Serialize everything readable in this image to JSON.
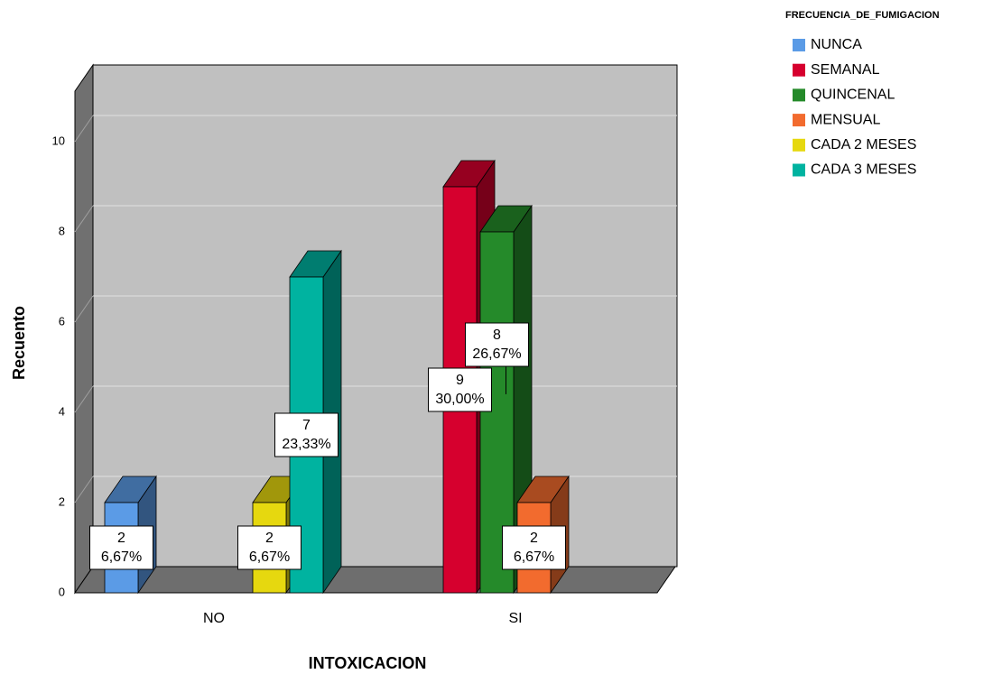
{
  "chart_data": {
    "type": "bar3d",
    "x_label": "INTOXICACION",
    "y_label": "Recuento",
    "legend_title": "FRECUENCIA_DE_FUMIGACION",
    "categories": [
      "NO",
      "SI"
    ],
    "ylim": [
      0,
      11
    ],
    "yticks": [
      0,
      2,
      4,
      6,
      8,
      10
    ],
    "grid": true,
    "legend": "right",
    "series": [
      {
        "name": "NUNCA",
        "color": "#5b9be6",
        "values": [
          2,
          null
        ],
        "value_labels": [
          [
            "2",
            "6,67%"
          ],
          null
        ]
      },
      {
        "name": "SEMANAL",
        "color": "#d6002e",
        "values": [
          null,
          9
        ],
        "value_labels": [
          null,
          [
            "9",
            "30,00%"
          ]
        ]
      },
      {
        "name": "QUINCENAL",
        "color": "#258a2a",
        "values": [
          null,
          8
        ],
        "value_labels": [
          null,
          [
            "8",
            "26,67%"
          ]
        ]
      },
      {
        "name": "MENSUAL",
        "color": "#f26b2e",
        "values": [
          null,
          2
        ],
        "value_labels": [
          null,
          [
            "2",
            "6,67%"
          ]
        ]
      },
      {
        "name": "CADA 2 MESES",
        "color": "#e6d80f",
        "values": [
          2,
          null
        ],
        "value_labels": [
          [
            "2",
            "6,67%"
          ],
          null
        ]
      },
      {
        "name": "CADA 3 MESES",
        "color": "#00b3a0",
        "values": [
          7,
          null
        ],
        "value_labels": [
          [
            "7",
            "23,33%"
          ],
          null
        ]
      }
    ]
  }
}
